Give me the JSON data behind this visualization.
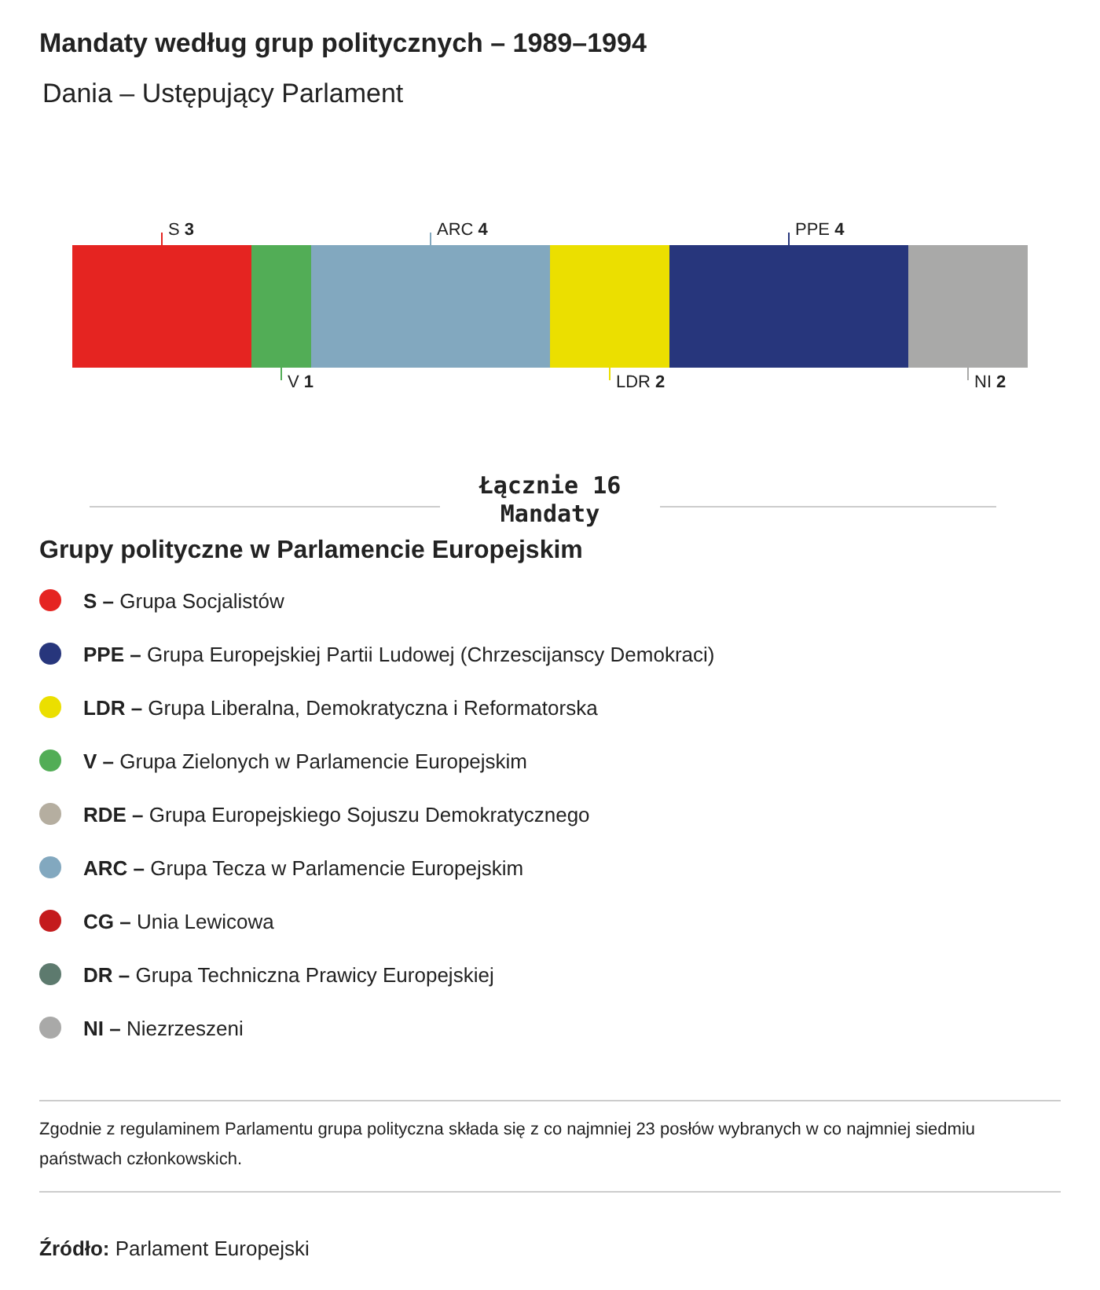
{
  "chart_data": [
    {
      "type": "bar",
      "orientation": "horizontal",
      "stacked": true,
      "data_labels": true,
      "legend": "top",
      "title": "Mandaty według grup politycznych – 1989–1994",
      "subtitle": "Dania – Ustępujący Parlament",
      "categories": [
        null
      ],
      "series": [
        {
          "name": "S",
          "color": "#e52421",
          "values": [
            3
          ]
        },
        {
          "name": "V",
          "color": "#52ad56",
          "values": [
            1
          ]
        },
        {
          "name": "ARC",
          "color": "#82a8bf",
          "values": [
            4
          ]
        },
        {
          "name": "LDR",
          "color": "#ebdf00",
          "values": [
            2
          ]
        },
        {
          "name": "PPE",
          "color": "#27367c",
          "values": [
            4
          ]
        },
        {
          "name": "NI",
          "color": "#a9a9a8",
          "values": [
            2
          ]
        }
      ],
      "annotations": [
        "Łącznie 16 Mandaty"
      ]
    },
    {
      "type": "other",
      "title": "Grupy polityczne w Parlamencie Europejskim",
      "categories": [
        "S – Grupa Socjalistów",
        "PPE – Grupa Europejskiej Partii Ludowej (Chrzescijanscy Demokraci)",
        "LDR – Grupa Liberalna, Demokratyczna i Reformatorska",
        "V – Grupa Zielonych w Parlamencie Europejskim",
        "RDE – Grupa Europejskiego Sojuszu Demokratycznego",
        "ARC – Grupa Tecza w Parlamencie Europejskim",
        "CG – Unia Lewicowa",
        "DR – Grupa Techniczna Prawicy Europejskiej",
        "NI – Niezrzeszeni"
      ],
      "colors": [
        "#e52421",
        "#27367c",
        "#ebdf00",
        "#52ad56",
        "#b5aea0",
        "#82a8bf",
        "#c41b1d",
        "#5d7a6e",
        "#a9a9a8"
      ],
      "annotations": [
        "Zgodnie z regulaminem Parlamentu grupa polityczna składa się z co najmniej 23 posłów wybranych w co najmniej siedmiu państwach członkowskich.",
        "Źródło: Parlament Europejski"
      ]
    }
  ]
}
